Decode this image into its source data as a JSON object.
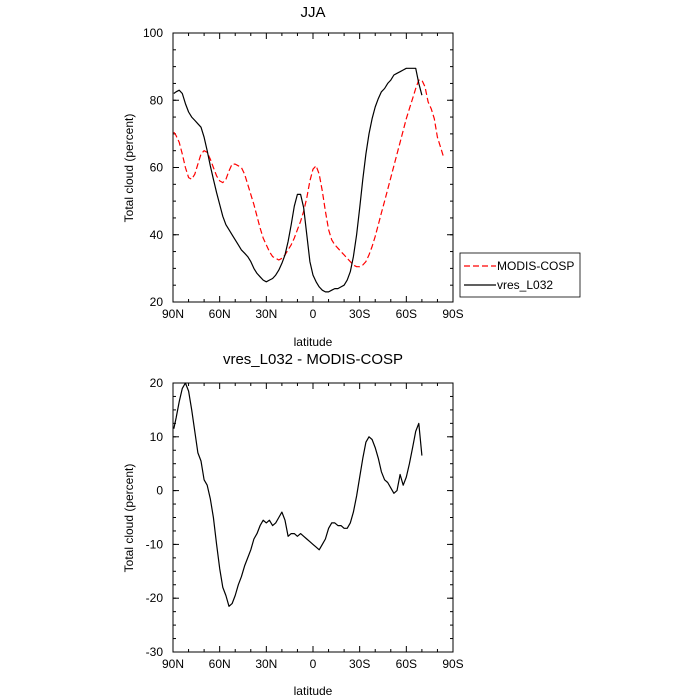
{
  "chart_data": [
    {
      "type": "line",
      "title": "JJA",
      "xlabel": "latitude",
      "ylabel": "Total cloud (percent)",
      "xlim": [
        90,
        -90
      ],
      "ylim": [
        20,
        100
      ],
      "x_ticks": [
        90,
        60,
        30,
        0,
        -30,
        -60,
        -90
      ],
      "x_tick_labels": [
        "90N",
        "60N",
        "30N",
        "0",
        "30S",
        "60S",
        "90S"
      ],
      "y_ticks": [
        20,
        40,
        60,
        80,
        100
      ],
      "y_tick_labels": [
        "20",
        "40",
        "60",
        "80",
        "100"
      ],
      "legend": [
        {
          "name": "MODIS-COSP",
          "color": "#ff0000",
          "dash": "dashed"
        },
        {
          "name": "vres_L032",
          "color": "#000000",
          "dash": "solid"
        }
      ],
      "legend_position": "right-outside",
      "series": [
        {
          "name": "MODIS-COSP",
          "color": "#ff0000",
          "dash": "dashed",
          "x": [
            89.5,
            88,
            86,
            84,
            82,
            80,
            78,
            76,
            74,
            72,
            70,
            68,
            66,
            64,
            62,
            60,
            58,
            56,
            54,
            52,
            50,
            48,
            46,
            44,
            42,
            40,
            38,
            36,
            34,
            32,
            30,
            28,
            26,
            24,
            22,
            20,
            18,
            16,
            14,
            12,
            10,
            8,
            6,
            4,
            2,
            0,
            -2,
            -4,
            -6,
            -8,
            -10,
            -12,
            -14,
            -16,
            -18,
            -20,
            -22,
            -24,
            -26,
            -28,
            -30,
            -32,
            -34,
            -36,
            -38,
            -40,
            -42,
            -44,
            -46,
            -48,
            -50,
            -52,
            -54,
            -56,
            -58,
            -60,
            -62,
            -64,
            -66,
            -68,
            -70,
            -72
          ],
          "values": [
            70.5,
            69.5,
            67.5,
            64,
            60,
            57,
            56.5,
            58,
            61,
            64,
            65,
            64.5,
            62.5,
            60,
            57.5,
            56,
            55.5,
            56.5,
            59,
            61,
            61,
            60.5,
            60,
            58,
            55,
            52,
            49,
            45.5,
            42,
            39,
            37,
            35,
            33.5,
            33,
            32.5,
            33,
            34,
            35.5,
            37,
            39,
            41.5,
            44,
            47,
            51,
            56,
            59.5,
            60.5,
            58,
            53,
            47,
            41.5,
            38.5,
            37,
            36,
            35,
            34,
            33,
            32,
            31,
            30.5,
            30.5,
            31,
            32,
            34,
            36.5,
            39.5,
            43,
            46.5,
            50,
            53.5,
            57,
            60.5,
            64,
            67.5,
            71,
            74.5,
            77.5,
            80.5,
            83.5,
            86,
            86,
            84
          ],
          "values_tail": {
            "x": [
              -74,
              -76,
              -78,
              -80,
              -82,
              -84
            ],
            "values": [
              79.5,
              77.5,
              74.5,
              69,
              66,
              63
            ]
          }
        },
        {
          "name": "vres_L032",
          "color": "#000000",
          "dash": "solid",
          "x": [
            89.5,
            88,
            86,
            84,
            82,
            80,
            78,
            76,
            74,
            72,
            70,
            68,
            66,
            64,
            62,
            60,
            58,
            56,
            54,
            52,
            50,
            48,
            46,
            44,
            42,
            40,
            38,
            36,
            34,
            32,
            30,
            28,
            26,
            24,
            22,
            20,
            18,
            16,
            14,
            12,
            10,
            8,
            6,
            4,
            2,
            0,
            -2,
            -4,
            -6,
            -8,
            -10,
            -12,
            -14,
            -16,
            -18,
            -20,
            -22,
            -24,
            -26,
            -28,
            -30,
            -32,
            -34,
            -36,
            -38,
            -40,
            -42,
            -44,
            -46,
            -48,
            -50,
            -52,
            -54,
            -56,
            -58,
            -60,
            -62,
            -64,
            -66,
            -68,
            -70
          ],
          "values": [
            82,
            82.5,
            83,
            82,
            79,
            76.5,
            75,
            74,
            73,
            72,
            69,
            65,
            60.5,
            56.5,
            52.5,
            49,
            45.5,
            43,
            41.5,
            40,
            38.5,
            37,
            35.5,
            34.5,
            33.5,
            32,
            30,
            28.5,
            27.5,
            26.5,
            26,
            26.5,
            27,
            28,
            29.5,
            31.5,
            34,
            38,
            43,
            48.5,
            52,
            52,
            48,
            40,
            32,
            28,
            26,
            24.5,
            23.5,
            23,
            23,
            23.5,
            24,
            24,
            24.5,
            25,
            26.5,
            29,
            33.5,
            40,
            48,
            56.5,
            64,
            70,
            74.5,
            78,
            80.5,
            82.5,
            83.5,
            85,
            86,
            87.5,
            88,
            88.5,
            89,
            89.5,
            89.5,
            89.5,
            89.5,
            85,
            81.5
          ]
        }
      ]
    },
    {
      "type": "line",
      "title": "vres_L032 - MODIS-COSP",
      "xlabel": "latitude",
      "ylabel": "Total cloud (percent)",
      "xlim": [
        90,
        -90
      ],
      "ylim": [
        -30,
        20
      ],
      "x_ticks": [
        90,
        60,
        30,
        0,
        -30,
        -60,
        -90
      ],
      "x_tick_labels": [
        "90N",
        "60N",
        "30N",
        "0",
        "30S",
        "60S",
        "90S"
      ],
      "y_ticks": [
        -30,
        -20,
        -10,
        0,
        10,
        20
      ],
      "y_tick_labels": [
        "-30",
        "-20",
        "-10",
        "0",
        "10",
        "20"
      ],
      "series": [
        {
          "name": "vres_L032 - MODIS-COSP",
          "color": "#000000",
          "dash": "solid",
          "x": [
            89.5,
            88,
            86,
            84,
            82,
            80,
            78,
            76,
            74,
            72,
            70,
            68,
            66,
            64,
            62,
            60,
            58,
            56,
            54,
            52,
            50,
            48,
            46,
            44,
            42,
            40,
            38,
            36,
            34,
            32,
            30,
            28,
            26,
            24,
            22,
            20,
            18,
            16,
            14,
            12,
            10,
            8,
            6,
            4,
            2,
            0,
            -2,
            -4,
            -6,
            -8,
            -10,
            -12,
            -14,
            -16,
            -18,
            -20,
            -22,
            -24,
            -26,
            -28,
            -30,
            -32,
            -34,
            -36,
            -38,
            -40,
            -42,
            -44,
            -46,
            -48,
            -50,
            -52,
            -54,
            -56,
            -58,
            -60,
            -62,
            -64,
            -66,
            -68,
            -70
          ],
          "values": [
            11.5,
            13.5,
            16.5,
            19,
            20,
            18.5,
            15,
            11,
            7,
            5.5,
            2,
            1,
            -1.5,
            -5,
            -10,
            -14.5,
            -18,
            -19.5,
            -21.5,
            -21,
            -19.5,
            -17.5,
            -16,
            -14,
            -12.5,
            -11,
            -9,
            -8,
            -6.5,
            -5.5,
            -6,
            -5.5,
            -6.5,
            -6,
            -5,
            -4,
            -5.5,
            -8.5,
            -8,
            -8,
            -8.5,
            -8,
            -8.5,
            -9,
            -9.5,
            -10,
            -10.5,
            -11,
            -10,
            -9,
            -7,
            -6,
            -6,
            -6.5,
            -6.5,
            -7,
            -7,
            -6,
            -4,
            -1,
            2.5,
            6,
            9,
            10,
            9.5,
            8,
            6,
            3.5,
            2,
            1.5,
            0.5,
            -0.5,
            0,
            3,
            1,
            2.5,
            5,
            8,
            11,
            12.5,
            6.5
          ]
        }
      ]
    }
  ]
}
